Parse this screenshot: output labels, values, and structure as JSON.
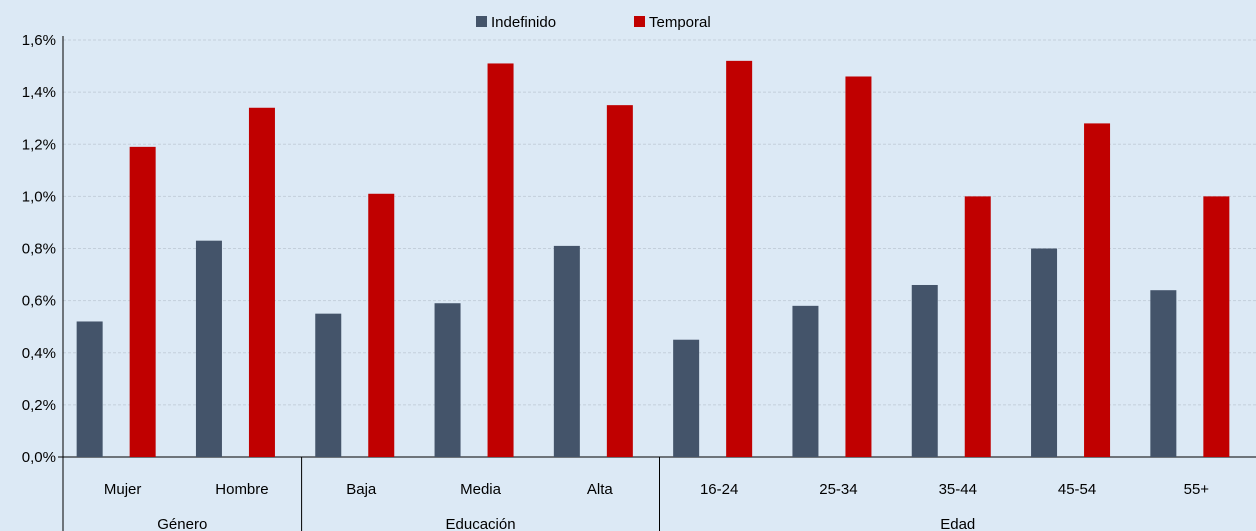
{
  "chart_data": {
    "type": "bar",
    "series": [
      {
        "name": "Indefinido",
        "color": "#44546a",
        "values": [
          0.52,
          0.83,
          0.55,
          0.59,
          0.81,
          0.45,
          0.58,
          0.66,
          0.8,
          0.64
        ]
      },
      {
        "name": "Temporal",
        "color": "#c00000",
        "values": [
          1.19,
          1.34,
          1.01,
          1.51,
          1.35,
          1.52,
          1.46,
          1.0,
          1.28,
          1.0
        ]
      }
    ],
    "categories": [
      "Mujer",
      "Hombre",
      "Baja",
      "Media",
      "Alta",
      "16-24",
      "25-34",
      "35-44",
      "45-54",
      "55+"
    ],
    "groups": [
      {
        "label": "Género",
        "count": 2
      },
      {
        "label": "Educación",
        "count": 3
      },
      {
        "label": "Edad",
        "count": 5
      }
    ],
    "y_ticks": [
      "0,0%",
      "0,2%",
      "0,4%",
      "0,6%",
      "0,8%",
      "1,0%",
      "1,2%",
      "1,4%",
      "1,6%"
    ],
    "ylim": [
      0,
      1.6
    ],
    "grid": true,
    "legend_position": "top-center",
    "title": "",
    "xlabel": "",
    "ylabel": ""
  }
}
